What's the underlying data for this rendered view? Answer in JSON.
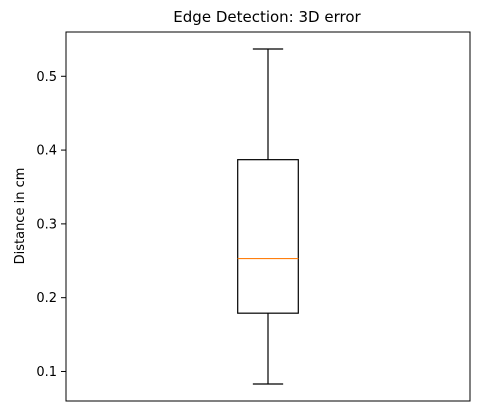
{
  "chart_data": {
    "type": "box",
    "title": "Edge Detection: 3D error",
    "xlabel": "",
    "ylabel": "Distance in cm",
    "ylim": [
      0.06,
      0.56
    ],
    "yticks": [
      0.1,
      0.2,
      0.3,
      0.4,
      0.5
    ],
    "ytick_labels": [
      "0.1",
      "0.2",
      "0.3",
      "0.4",
      "0.5"
    ],
    "grid": false,
    "series": [
      {
        "whisker_low": 0.083,
        "q1": 0.179,
        "median": 0.253,
        "q3": 0.387,
        "whisker_high": 0.537
      }
    ],
    "colors": {
      "box": "#000000",
      "median": "#ff7f0e"
    }
  }
}
